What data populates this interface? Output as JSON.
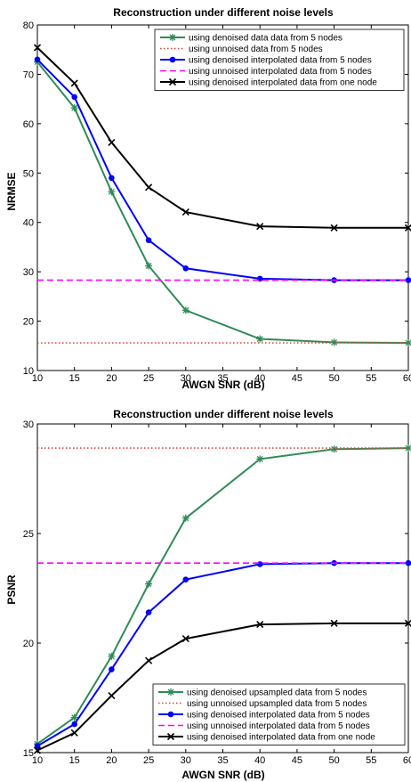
{
  "chart_data": [
    {
      "type": "line",
      "title": "Reconstruction under different noise levels",
      "xlabel": "AWGN SNR (dB)",
      "ylabel": "NRMSE",
      "xlim": [
        10,
        60
      ],
      "ylim": [
        10,
        80
      ],
      "xticks": [
        "10",
        "15",
        "20",
        "25",
        "30",
        "35",
        "40",
        "45",
        "50",
        "55",
        "60"
      ],
      "yticks": [
        "10",
        "20",
        "30",
        "40",
        "50",
        "60",
        "70",
        "80"
      ],
      "legend": "top-right",
      "grid": false,
      "x": [
        10,
        15,
        20,
        25,
        30,
        40,
        50,
        60
      ],
      "series": [
        {
          "name": "using denoised data data from 5 nodes",
          "color": "#2e8b57",
          "style": "solid",
          "marker": "star",
          "values": [
            72.5,
            63.2,
            46.2,
            31.2,
            22.2,
            16.4,
            15.7,
            15.6
          ]
        },
        {
          "name": "using unnoised data from 5 nodes",
          "color": "#d9443a",
          "style": "dotted",
          "marker": "none",
          "values": [
            15.6,
            15.6,
            15.6,
            15.6,
            15.6,
            15.6,
            15.6,
            15.6
          ]
        },
        {
          "name": "using denoised interpolated data from 5 nodes",
          "color": "#0000ff",
          "style": "solid",
          "marker": "dot",
          "values": [
            73.0,
            65.4,
            49.0,
            36.4,
            30.7,
            28.6,
            28.3,
            28.3
          ]
        },
        {
          "name": "using unnoised interpolated data from 5 nodes",
          "color": "#ff00ff",
          "style": "dashed",
          "marker": "none",
          "values": [
            28.3,
            28.3,
            28.3,
            28.3,
            28.3,
            28.3,
            28.3,
            28.3
          ]
        },
        {
          "name": "using denoised interpolated data from one node",
          "color": "#000000",
          "style": "solid",
          "marker": "x",
          "values": [
            75.4,
            68.2,
            56.2,
            47.1,
            42.1,
            39.2,
            38.9,
            38.9
          ]
        }
      ]
    },
    {
      "type": "line",
      "title": "Reconstruction under different noise levels",
      "xlabel": "AWGN SNR (dB)",
      "ylabel": "PSNR",
      "xlim": [
        10,
        60
      ],
      "ylim": [
        15,
        30
      ],
      "xticks": [
        "10",
        "15",
        "20",
        "25",
        "30",
        "35",
        "40",
        "45",
        "50",
        "55",
        "60"
      ],
      "yticks": [
        "15",
        "20",
        "25",
        "30"
      ],
      "legend": "bottom-right",
      "grid": false,
      "x": [
        10,
        15,
        20,
        25,
        30,
        40,
        50,
        60
      ],
      "series": [
        {
          "name": "using denoised upsampled data from 5 nodes",
          "color": "#2e8b57",
          "style": "solid",
          "marker": "star",
          "values": [
            15.4,
            16.6,
            19.4,
            22.7,
            25.7,
            28.4,
            28.85,
            28.9
          ]
        },
        {
          "name": "using unnoised upsampled data from 5 nodes",
          "color": "#d9443a",
          "style": "dotted",
          "marker": "none",
          "values": [
            28.9,
            28.9,
            28.9,
            28.9,
            28.9,
            28.9,
            28.9,
            28.9
          ]
        },
        {
          "name": "using denoised interpolated data from 5 nodes",
          "color": "#0000ff",
          "style": "solid",
          "marker": "dot",
          "values": [
            15.3,
            16.3,
            18.8,
            21.4,
            22.9,
            23.6,
            23.65,
            23.65
          ]
        },
        {
          "name": "using unnoised interpolated data from 5 nodes",
          "color": "#ff00ff",
          "style": "dashed",
          "marker": "none",
          "values": [
            23.65,
            23.65,
            23.65,
            23.65,
            23.65,
            23.65,
            23.65,
            23.65
          ]
        },
        {
          "name": "using denoised interpolated data from one node",
          "color": "#000000",
          "style": "solid",
          "marker": "x",
          "values": [
            15.1,
            15.9,
            17.6,
            19.2,
            20.2,
            20.85,
            20.9,
            20.9
          ]
        }
      ]
    }
  ]
}
